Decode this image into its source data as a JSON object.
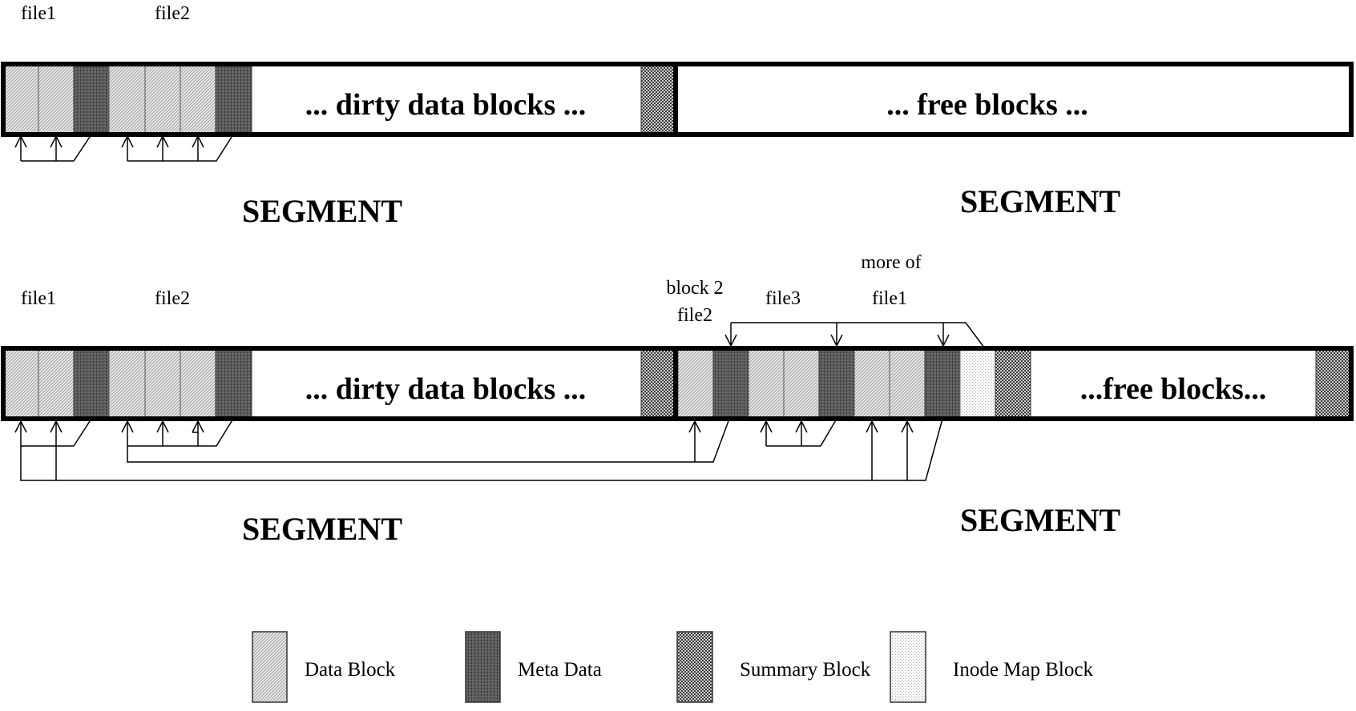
{
  "diagram": {
    "row1": {
      "file_labels": [
        "file1",
        "file2"
      ],
      "dirty_text": "... dirty data blocks ...",
      "free_text": "... free blocks ...",
      "segment_left": "SEGMENT",
      "segment_right": "SEGMENT"
    },
    "row2": {
      "file_labels": [
        "file1",
        "file2"
      ],
      "dirty_text": "... dirty data blocks ...",
      "free_text": "...free blocks...",
      "block2_line1": "block 2",
      "block2_line2": "file2",
      "file3": "file3",
      "more_of_line1": "more of",
      "more_of_line2": "file1",
      "segment_left": "SEGMENT",
      "segment_right": "SEGMENT"
    },
    "legend": {
      "data_block": "Data Block",
      "meta_data": "Meta Data",
      "summary_block": "Summary Block",
      "inode_map_block": "Inode Map Block"
    }
  }
}
